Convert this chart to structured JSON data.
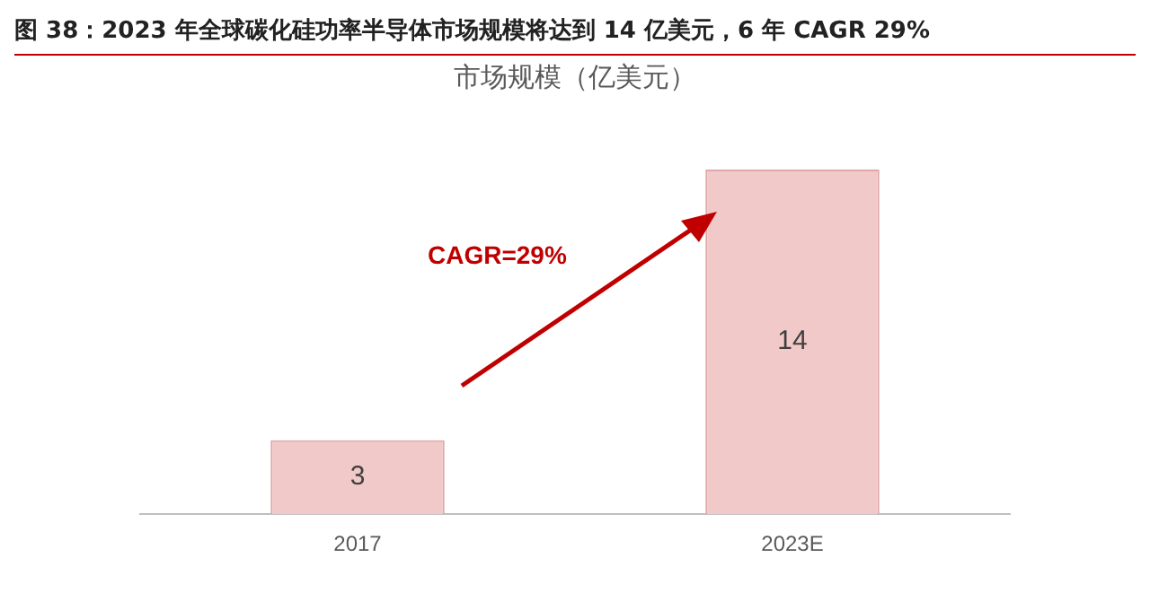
{
  "chart_data": {
    "type": "bar",
    "title": "图 38：2023 年全球碳化硅功率半导体市场规模将达到 14 亿美元，6 年 CAGR 29%",
    "subtitle": "市场规模（亿美元）",
    "categories": [
      "2017",
      "2023E"
    ],
    "values": [
      3,
      14
    ],
    "color": "#f2c9c9",
    "data_labels": true,
    "grid": false,
    "legend": false,
    "annotations": [
      "CAGR=29%"
    ]
  }
}
